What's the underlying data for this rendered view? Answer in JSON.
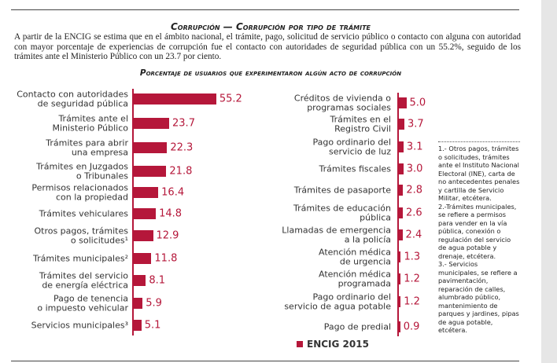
{
  "title": "Corrupción — Corrupción por tipo de trámite",
  "intro": "A partir de la ENCIG se estima que en el ámbito nacional, el trámite, pago, solicitud de servicio público o contacto con alguna con autoridad con mayor porcentaje de experiencias de corrupción fue el contacto con autoridades de seguridad pública con un 55.2%, seguido de los  trámites ante el Ministerio Público con un 23.7 por ciento.",
  "chart_title": "Porcentaje de usuarios que experimentaron algún acto de corrupción",
  "chart_data": [
    {
      "type": "bar",
      "orientation": "horizontal",
      "color": "#b5173a",
      "categories": [
        "Contacto con autoridades\nde seguridad pública",
        "Trámites ante el\nMinisterio Público",
        "Trámites para abrir\nuna empresa",
        "Trámites en Juzgados\no Tribunales",
        "Permisos relacionados\ncon la propiedad",
        "Trámites vehiculares",
        "Otros pagos, trámites\no solicitudes¹",
        "Trámites municipales²",
        "Trámites del servicio\nde energía eléctrica",
        "Pago de tenencia\no impuesto vehicular",
        "Servicios municipales³"
      ],
      "values": [
        55.2,
        23.7,
        22.3,
        21.8,
        16.4,
        14.8,
        12.9,
        11.8,
        8.1,
        5.9,
        5.1
      ]
    },
    {
      "type": "bar",
      "orientation": "horizontal",
      "categories": [
        "Créditos de vivienda o\nprogramas sociales",
        "Trámites en el\nRegistro Civil",
        "Pago ordinario del\nservicio de luz",
        "Trámites fiscales",
        "Trámites de pasaporte",
        "Trámites de educación\npública",
        "Llamadas de emergencia\na la policía",
        "Atención médica\nde urgencia",
        "Atención médica\nprogramada",
        "Pago ordinario del\nservicio de agua potable",
        "Pago de predial"
      ],
      "series": [
        {
          "name": "ENCIG 2015",
          "color": "#b5173a",
          "values": [
            5,
            3.7,
            3.1,
            3,
            2.8,
            2.6,
            2.4,
            1.3,
            1.2,
            1.2,
            0.9
          ],
          "value_labels": [
            "5.0",
            "3.7",
            "3.1",
            "3.0",
            "2.8",
            "2.6",
            "2.4",
            "1.3",
            "1.2",
            "1.2",
            "0.9"
          ]
        }
      ]
    }
  ],
  "notes": [
    "1.- Otros pagos, trámites o solicitudes, trámites ante el Instituto Nacional Electoral (INE), carta de no antecedentes penales y cartilla de Servicio Militar, etcétera.",
    "2.-Trámites municipales, se refiere a permisos para vender en la vía pública, conexión o regulación del servicio de agua potable y drenaje, etcétera.",
    "3.- Servicios municipales, se refiere a pavimentación, reparación de calles, alumbrado público, mantenimiento de parques y jardines, pipas de agua potable, etcétera."
  ]
}
